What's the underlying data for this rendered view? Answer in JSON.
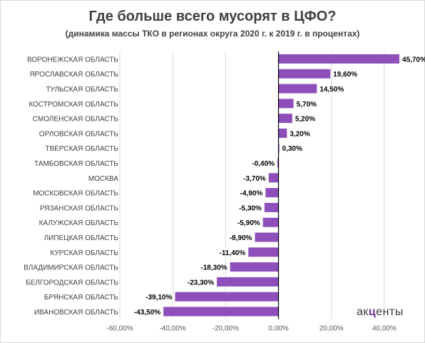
{
  "chart_data": {
    "type": "bar",
    "orientation": "horizontal",
    "title": "Где больше всего мусорят в ЦФО?",
    "subtitle": "(динамика массы ТКО в регионах округа 2020 г. к 2019 г. в процентах)",
    "categories": [
      "ВОРОНЕЖСКАЯ ОБЛАСТЬ",
      "ЯРОСЛАВСКАЯ ОБЛАСТЬ",
      "ТУЛЬСКАЯ ОБЛАСТЬ",
      "КОСТРОМСКАЯ ОБЛАСТЬ",
      "СМОЛЕНСКАЯ ОБЛАСТЬ",
      "ОРЛОВСКАЯ ОБЛАСТЬ",
      "ТВЕРСКАЯ ОБЛАСТЬ",
      "ТАМБОВСКАЯ ОБЛАСТЬ",
      "МОСКВА",
      "МОСКОВСКАЯ ОБЛАСТЬ",
      "РЯЗАНСКАЯ ОБЛАСТЬ",
      "КАЛУЖСКАЯ ОБЛАСТЬ",
      "ЛИПЕЦКАЯ ОБЛАСТЬ",
      "КУРСКАЯ ОБЛАСТЬ",
      "ВЛАДИМИРСКАЯ ОБЛАСТЬ",
      "БЕЛГОРОДСКАЯ ОБЛАСТЬ",
      "БРЯНСКАЯ ОБЛАСТЬ",
      "ИВАНОВСКАЯ ОБЛАСТЬ"
    ],
    "values": [
      45.7,
      19.6,
      14.5,
      5.7,
      5.2,
      3.2,
      0.3,
      -0.4,
      -3.7,
      -4.9,
      -5.3,
      -5.9,
      -8.9,
      -11.4,
      -18.3,
      -23.3,
      -39.1,
      -43.5
    ],
    "value_labels": [
      "45,70%",
      "19,60%",
      "14,50%",
      "5,70%",
      "5,20%",
      "3,20%",
      "0,30%",
      "-0,40%",
      "-3,70%",
      "-4,90%",
      "-5,30%",
      "-5,90%",
      "-8,90%",
      "-11,40%",
      "-18,30%",
      "-23,30%",
      "-39,10%",
      "-43,50%"
    ],
    "xlim": [
      -60,
      50
    ],
    "x_ticks": [
      -60,
      -40,
      -20,
      0,
      20,
      40
    ],
    "x_tick_labels": [
      "-60,00%",
      "-40,00%",
      "-20,00%",
      "0,00%",
      "20,00%",
      "40,00%"
    ],
    "grid": "vertical",
    "bar_color": "#8e4fba",
    "grid_color": "#d9d9d9",
    "axis_color": "#000000"
  },
  "logo": {
    "before": "ак",
    "accent": "ц",
    "after": "енты"
  }
}
